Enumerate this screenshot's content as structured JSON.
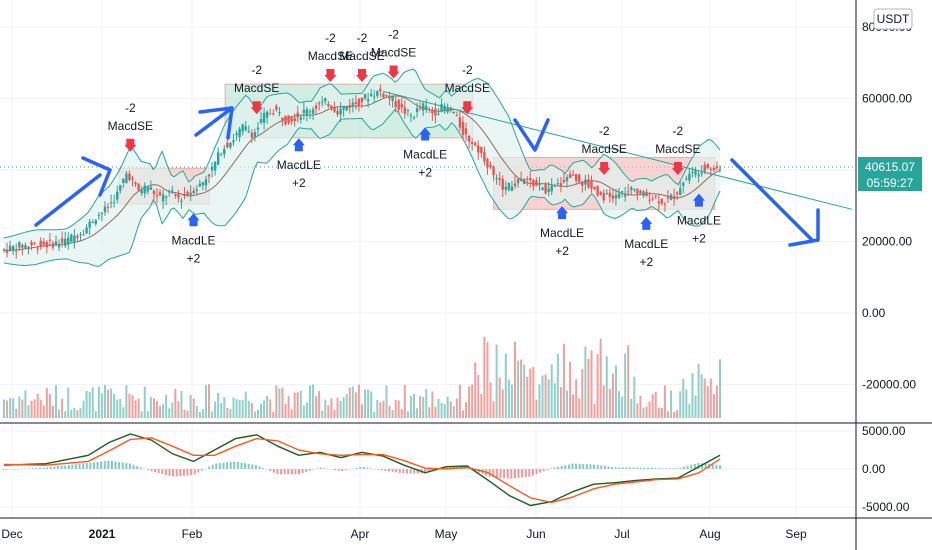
{
  "chart_data": [
    {
      "type": "candlestick",
      "x_ticks": [
        "Dec",
        "2021",
        "Feb",
        "Apr",
        "May",
        "Jun",
        "Jul",
        "Aug",
        "Sep"
      ],
      "y_ticks": [
        "80000.00",
        "60000.00",
        "40000.00",
        "20000.00",
        "0.00",
        "-20000.00"
      ],
      "ylim": [
        -25000,
        82000
      ],
      "currency_badge": "USDT",
      "last_price": "40615.07",
      "countdown": "05:59:27",
      "colors": {
        "up": "#26a69a",
        "down": "#ef5350",
        "volume_up": "#8fd0c8",
        "volume_down": "#f2a09d",
        "basis": "#8d6e63",
        "bands": "#26a69a",
        "band_fill": "#e0f2ef",
        "arrow": "#2962ff",
        "trendline": "#26a69a",
        "box_green": "#b5e3d0",
        "box_red": "#f4b7b7"
      },
      "price_path": [
        [
          0,
          17500
        ],
        [
          2,
          18800
        ],
        [
          4,
          19200
        ],
        [
          6,
          19800
        ],
        [
          8,
          23500
        ],
        [
          9,
          27000
        ],
        [
          10,
          29000
        ],
        [
          11,
          33000
        ],
        [
          12,
          39500
        ],
        [
          13,
          34000
        ],
        [
          14,
          35500
        ],
        [
          15,
          32000
        ],
        [
          16,
          33500
        ],
        [
          17,
          32000
        ],
        [
          18,
          34000
        ],
        [
          19,
          36000
        ],
        [
          20,
          40000
        ],
        [
          21,
          46000
        ],
        [
          22,
          48500
        ],
        [
          23,
          52000
        ],
        [
          24,
          50000
        ],
        [
          25,
          55000
        ],
        [
          26,
          57000
        ],
        [
          27,
          54000
        ],
        [
          28,
          55000
        ],
        [
          29,
          56500
        ],
        [
          30,
          58000
        ],
        [
          31,
          59000
        ],
        [
          32,
          56500
        ],
        [
          33,
          58000
        ],
        [
          34,
          59000
        ],
        [
          35,
          61000
        ],
        [
          36,
          62000
        ],
        [
          37,
          60000
        ],
        [
          38,
          57000
        ],
        [
          39,
          55000
        ],
        [
          40,
          58000
        ],
        [
          41,
          56000
        ],
        [
          42,
          57500
        ],
        [
          43,
          56000
        ],
        [
          44,
          50000
        ],
        [
          45,
          47000
        ],
        [
          46,
          43000
        ],
        [
          47,
          37000
        ],
        [
          48,
          35000
        ],
        [
          49,
          36500
        ],
        [
          50,
          37000
        ],
        [
          51,
          35500
        ],
        [
          52,
          34000
        ],
        [
          53,
          36000
        ],
        [
          54,
          38500
        ],
        [
          55,
          37000
        ],
        [
          56,
          35500
        ],
        [
          57,
          33000
        ],
        [
          58,
          32000
        ],
        [
          59,
          33500
        ],
        [
          60,
          34000
        ],
        [
          61,
          33000
        ],
        [
          62,
          32500
        ],
        [
          63,
          31000
        ],
        [
          64,
          33000
        ],
        [
          65,
          38000
        ],
        [
          66,
          39500
        ],
        [
          67,
          41000
        ],
        [
          68,
          40500
        ]
      ],
      "signals": [
        {
          "kind": "MacdSE",
          "text": "-2",
          "label": "MacdSE",
          "t": 12
        },
        {
          "kind": "MacdLE",
          "text": "+2",
          "label": "MacdLE",
          "t": 18
        },
        {
          "kind": "MacdSE",
          "text": "-2",
          "label": "MacdSE",
          "t": 24
        },
        {
          "kind": "MacdLE",
          "text": "+2",
          "label": "MacdLE",
          "t": 28
        },
        {
          "kind": "MacdSE",
          "text": "-2",
          "label": "MacdSE",
          "t": 31
        },
        {
          "kind": "MacdSE",
          "text": "-2",
          "label": "MacdSE",
          "t": 34
        },
        {
          "kind": "MacdSE",
          "text": "-2",
          "label": "MacdSE",
          "t": 37
        },
        {
          "kind": "MacdSE",
          "text": "-2",
          "label": "MacdSE",
          "t": 44
        },
        {
          "kind": "MacdLE",
          "text": "+2",
          "label": "MacdLE",
          "t": 40
        },
        {
          "kind": "MacdLE",
          "text": "+2",
          "label": "MacdLE",
          "t": 53
        },
        {
          "kind": "MacdLE",
          "text": "+2",
          "label": "MacdLE",
          "t": 61
        },
        {
          "kind": "MacdSE",
          "text": "-2",
          "label": "MacdSE",
          "t": 57
        },
        {
          "kind": "MacdSE",
          "text": "-2",
          "label": "MacdSE",
          "t": 64
        },
        {
          "kind": "MacdLE",
          "text": "+2",
          "label": "MacdLE",
          "t": 66
        }
      ]
    },
    {
      "type": "bar",
      "name_hidden": true,
      "values_pattern": "volume"
    },
    {
      "type": "line",
      "y_ticks": [
        "5000.00",
        "0.00",
        "-5000.00"
      ],
      "ylim": [
        -5500,
        5500
      ],
      "macd": [
        [
          0,
          500
        ],
        [
          4,
          700
        ],
        [
          8,
          1800
        ],
        [
          10,
          3500
        ],
        [
          12,
          4600
        ],
        [
          14,
          3800
        ],
        [
          16,
          2000
        ],
        [
          18,
          1000
        ],
        [
          20,
          2500
        ],
        [
          22,
          4000
        ],
        [
          24,
          4500
        ],
        [
          26,
          3000
        ],
        [
          28,
          1800
        ],
        [
          30,
          2200
        ],
        [
          32,
          1500
        ],
        [
          34,
          2200
        ],
        [
          36,
          1700
        ],
        [
          38,
          500
        ],
        [
          40,
          -500
        ],
        [
          42,
          300
        ],
        [
          44,
          400
        ],
        [
          46,
          -1500
        ],
        [
          48,
          -3500
        ],
        [
          50,
          -4800
        ],
        [
          52,
          -4300
        ],
        [
          54,
          -3000
        ],
        [
          56,
          -2000
        ],
        [
          58,
          -1800
        ],
        [
          60,
          -1500
        ],
        [
          62,
          -1300
        ],
        [
          64,
          -1200
        ],
        [
          66,
          300
        ],
        [
          68,
          1800
        ]
      ],
      "signal": [
        [
          0,
          600
        ],
        [
          4,
          500
        ],
        [
          8,
          1000
        ],
        [
          10,
          2400
        ],
        [
          12,
          3900
        ],
        [
          14,
          4100
        ],
        [
          16,
          3000
        ],
        [
          18,
          1800
        ],
        [
          20,
          1800
        ],
        [
          22,
          3000
        ],
        [
          24,
          4000
        ],
        [
          26,
          3700
        ],
        [
          28,
          2500
        ],
        [
          30,
          2000
        ],
        [
          32,
          1800
        ],
        [
          34,
          1900
        ],
        [
          36,
          1900
        ],
        [
          38,
          1100
        ],
        [
          40,
          100
        ],
        [
          42,
          0
        ],
        [
          44,
          200
        ],
        [
          46,
          -500
        ],
        [
          48,
          -2200
        ],
        [
          50,
          -3800
        ],
        [
          52,
          -4400
        ],
        [
          54,
          -3700
        ],
        [
          56,
          -2600
        ],
        [
          58,
          -2000
        ],
        [
          60,
          -1700
        ],
        [
          62,
          -1400
        ],
        [
          64,
          -1300
        ],
        [
          66,
          -500
        ],
        [
          68,
          1300
        ]
      ]
    }
  ]
}
